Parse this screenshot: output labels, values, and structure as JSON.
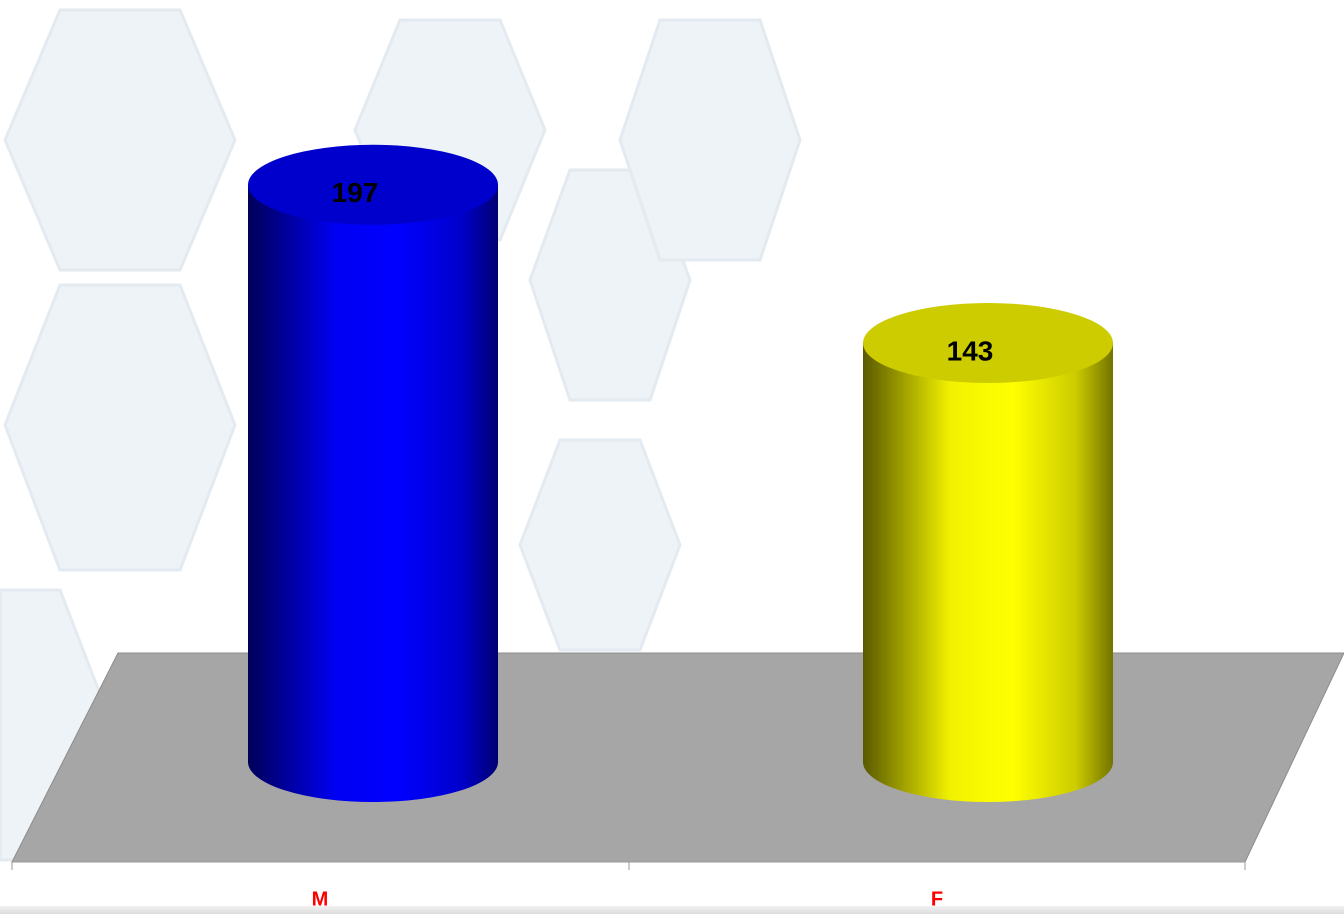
{
  "chart_data": {
    "type": "cylinder",
    "categories": [
      "M",
      "F"
    ],
    "values": [
      197,
      143
    ],
    "colors": [
      "#0000ff",
      "#ffff00"
    ],
    "label_color": "#ff0000"
  }
}
